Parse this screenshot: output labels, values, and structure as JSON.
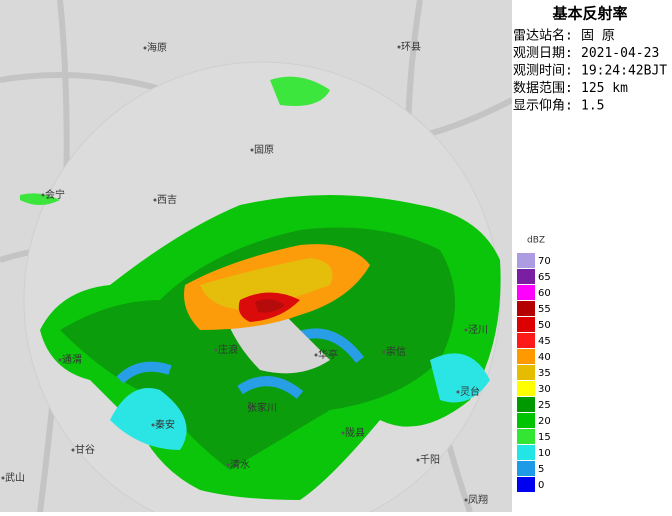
{
  "panel": {
    "title": "基本反射率",
    "rows": [
      [
        "雷达站名:",
        "固 原"
      ],
      [
        "观测日期:",
        "2021-04-23"
      ],
      [
        "观测时间:",
        "19:24:42BJT"
      ],
      [
        "数据范围:",
        "125 km"
      ],
      [
        "显示仰角:",
        "1.5"
      ]
    ]
  },
  "legend": {
    "title": "dBZ",
    "levels": [
      {
        "value": 70,
        "color": "#ad9ce2"
      },
      {
        "value": 65,
        "color": "#7b1fa2"
      },
      {
        "value": 60,
        "color": "#ff00ff"
      },
      {
        "value": 55,
        "color": "#b40000"
      },
      {
        "value": 50,
        "color": "#dc0000"
      },
      {
        "value": 45,
        "color": "#ff1a1a"
      },
      {
        "value": 40,
        "color": "#ff9900"
      },
      {
        "value": 35,
        "color": "#e6bc00"
      },
      {
        "value": 30,
        "color": "#ffff00"
      },
      {
        "value": 25,
        "color": "#009a00"
      },
      {
        "value": 20,
        "color": "#00c400"
      },
      {
        "value": 15,
        "color": "#33e633"
      },
      {
        "value": 10,
        "color": "#22e6e6"
      },
      {
        "value": 5,
        "color": "#1e9be6"
      },
      {
        "value": 0,
        "color": "#0000f0"
      }
    ]
  },
  "places": [
    "海原",
    "环县",
    "固原",
    "会宁",
    "西吉",
    "泾川",
    "通渭",
    "庄浪",
    "华亭",
    "崇信",
    "灵台",
    "秦安",
    "甘谷",
    "清水",
    "张家川",
    "陇县",
    "千阳",
    "武山",
    "凤翔"
  ]
}
